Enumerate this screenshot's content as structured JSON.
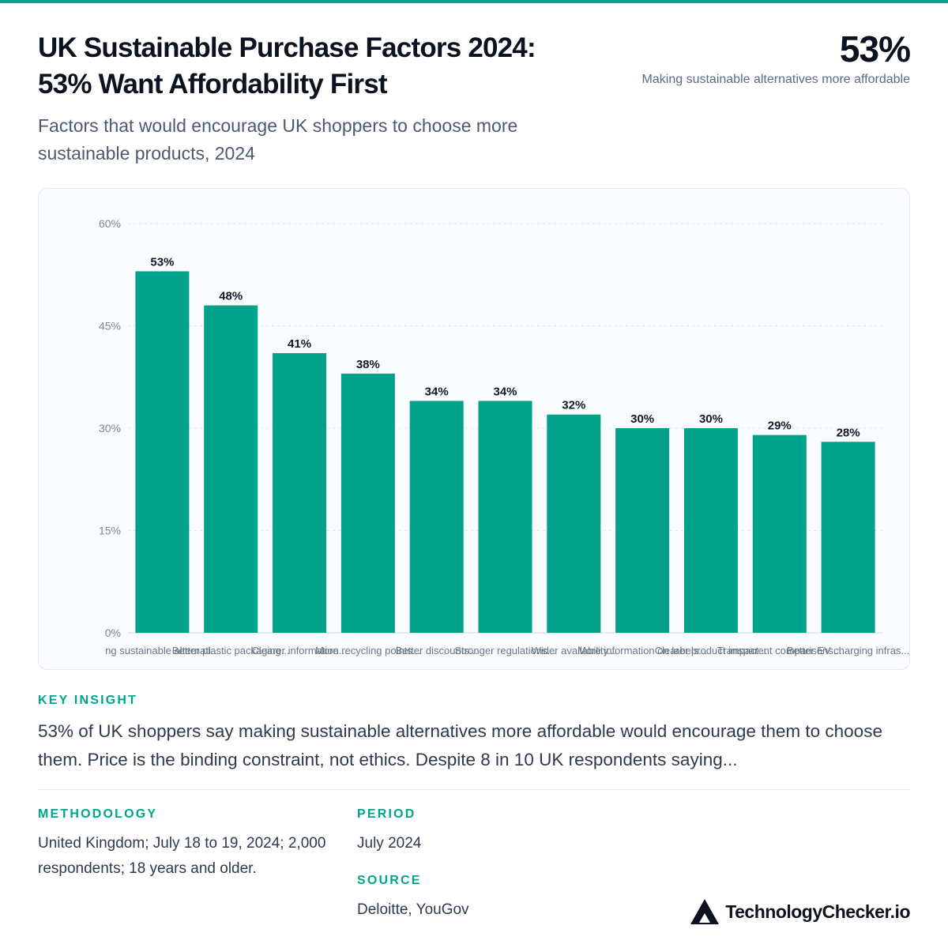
{
  "header": {
    "title": "UK Sustainable Purchase Factors 2024: 53% Want Affordability First",
    "subtitle": "Factors that would encourage UK shoppers to choose more sustainable products, 2024",
    "kpi_value": "53%",
    "kpi_label": "Making sustainable alternatives more affordable"
  },
  "insight": {
    "label": "KEY INSIGHT",
    "text": "53% of UK shoppers say making sustainable alternatives more affordable would encourage them to choose them. Price is the binding constraint, not ethics. Despite 8 in 10 UK respondents saying..."
  },
  "methodology": {
    "label": "METHODOLOGY",
    "text": "United Kingdom; July 18 to 19, 2024; 2,000 respondents; 18 years and older."
  },
  "period": {
    "label": "PERIOD",
    "text": "July 2024"
  },
  "source": {
    "label": "SOURCE",
    "text": "Deloitte, YouGov"
  },
  "brand": {
    "name": "TechnologyChecker.io",
    "icon": "triangle-logo-icon"
  },
  "colors": {
    "accent": "#01a48a",
    "bar": "#00a38a"
  },
  "chart_data": {
    "type": "bar",
    "categories": [
      "ng sustainable alternati...",
      "Better plastic packaging...",
      "Clearer information...",
      "More recycling points...",
      "Better discounts...",
      "Stronger regulations...",
      "Wider availability...",
      "More information on labels...",
      "Clearer product impact...",
      "Transparent comparisons...",
      "Better EV charging infras..."
    ],
    "values": [
      53,
      48,
      41,
      38,
      34,
      34,
      32,
      30,
      30,
      29,
      28
    ],
    "value_labels": [
      "53%",
      "48%",
      "41%",
      "38%",
      "34%",
      "34%",
      "32%",
      "30%",
      "30%",
      "29%",
      "28%"
    ],
    "yticks": [
      "0%",
      "15%",
      "30%",
      "45%",
      "60%"
    ],
    "ylim": [
      0,
      60
    ],
    "grid": true
  }
}
